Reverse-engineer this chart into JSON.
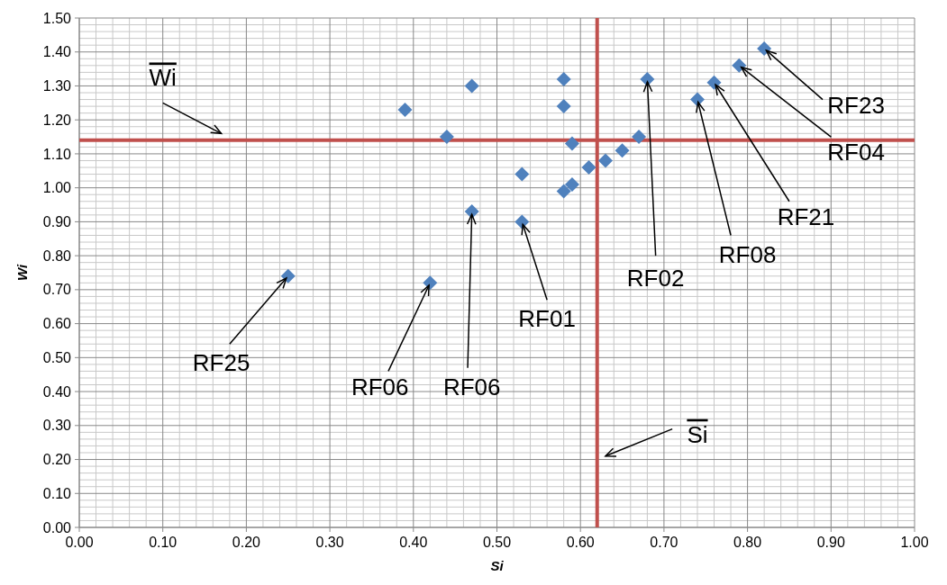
{
  "chart_data": {
    "type": "scatter",
    "xlabel": "Si",
    "ylabel": "Wi",
    "marker": "diamond",
    "grid": true,
    "xlim": [
      0,
      1
    ],
    "xticks": [
      {
        "value": 0,
        "label": "0.00"
      },
      {
        "value": 0.1,
        "label": "0.10"
      },
      {
        "value": 0.2,
        "label": "0.20"
      },
      {
        "value": 0.3,
        "label": "0.30"
      },
      {
        "value": 0.4,
        "label": "0.40"
      },
      {
        "value": 0.5,
        "label": "0.50"
      },
      {
        "value": 0.6,
        "label": "0.60"
      },
      {
        "value": 0.7,
        "label": "0.70"
      },
      {
        "value": 0.8,
        "label": "0.80"
      },
      {
        "value": 0.9,
        "label": "0.90"
      },
      {
        "value": 1,
        "label": "1.00"
      }
    ],
    "ylim": [
      0,
      1.5
    ],
    "yticks": [
      {
        "value": 0,
        "label": "0.00"
      },
      {
        "value": 0.1,
        "label": "0.10"
      },
      {
        "value": 0.2,
        "label": "0.20"
      },
      {
        "value": 0.3,
        "label": "0.30"
      },
      {
        "value": 0.4,
        "label": "0.40"
      },
      {
        "value": 0.5,
        "label": "0.50"
      },
      {
        "value": 0.6,
        "label": "0.60"
      },
      {
        "value": 0.7,
        "label": "0.70"
      },
      {
        "value": 0.8,
        "label": "0.80"
      },
      {
        "value": 0.9,
        "label": "0.90"
      },
      {
        "value": 1,
        "label": "1.00"
      },
      {
        "value": 1.1,
        "label": "1.10"
      },
      {
        "value": 1.2,
        "label": "1.20"
      },
      {
        "value": 1.3,
        "label": "1.30"
      },
      {
        "value": 1.4,
        "label": "1.40"
      },
      {
        "value": 1.5,
        "label": "1.50"
      }
    ],
    "series": [
      {
        "color": "#4f81bd",
        "x": [
          0.25,
          0.42,
          0.47,
          0.53,
          0.39,
          0.47,
          0.44,
          0.58,
          0.58,
          0.59,
          0.53,
          0.58,
          0.59,
          0.61,
          0.63,
          0.65,
          0.67,
          0.68,
          0.74,
          0.76,
          0.79,
          0.82
        ],
        "values": [
          0.74,
          0.72,
          0.93,
          0.9,
          1.23,
          1.3,
          1.15,
          1.32,
          1.24,
          1.13,
          1.04,
          0.99,
          1.01,
          1.06,
          1.08,
          1.11,
          1.15,
          1.32,
          1.26,
          1.31,
          1.36,
          1.41
        ]
      }
    ],
    "ref_lines": [
      {
        "axis": "y",
        "value": 1.14,
        "label": "Wi",
        "color": "#c0504d"
      },
      {
        "axis": "x",
        "value": 0.62,
        "label": "Si",
        "color": "#c0504d"
      }
    ],
    "annotations": [
      {
        "text": "RF25",
        "x": 0.25,
        "y": 0.74
      },
      {
        "text": "RF06",
        "x": 0.42,
        "y": 0.72
      },
      {
        "text": "RF06",
        "x": 0.47,
        "y": 0.93
      },
      {
        "text": "RF01",
        "x": 0.53,
        "y": 0.9
      },
      {
        "text": "RF02",
        "x": 0.68,
        "y": 1.32
      },
      {
        "text": "RF08",
        "x": 0.74,
        "y": 1.26
      },
      {
        "text": "RF21",
        "x": 0.76,
        "y": 1.31
      },
      {
        "text": "RF04",
        "x": 0.79,
        "y": 1.36
      },
      {
        "text": "RF23",
        "x": 0.82,
        "y": 1.41
      }
    ]
  }
}
